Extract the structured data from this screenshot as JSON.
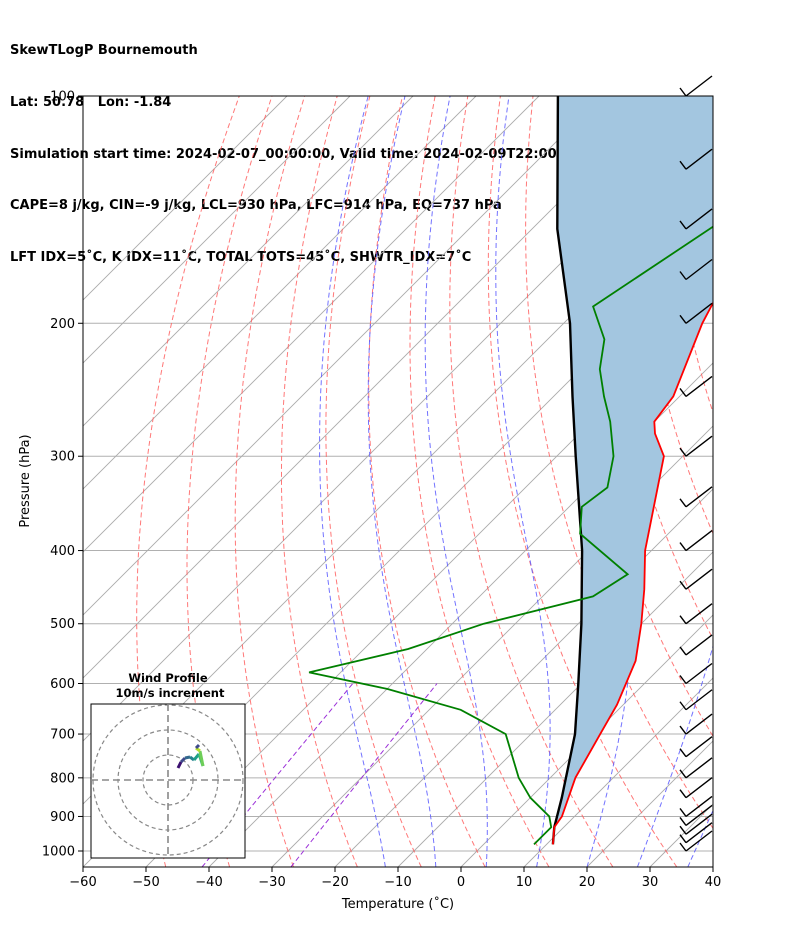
{
  "header": {
    "line1": "SkewTLogP Bournemouth",
    "line2": "Lat: 50.78   Lon: -1.84",
    "line3": "Simulation start time: 2024-02-07_00:00:00, Valid time: 2024-02-09T22:00:00.00",
    "line4": "CAPE=8 j/kg, CIN=-9 j/kg, LCL=930 hPa, LFC=914 hPa, EQ=737 hPa",
    "line5": "LFT IDX=5˚C, K IDX=11˚C, TOTAL TOTS=45˚C, SHWTR_IDX=7˚C"
  },
  "chart_data": {
    "type": "skewt",
    "xlabel": "Temperature (˚C)",
    "ylabel": "Pressure (hPa)",
    "xlim": [
      -60,
      40
    ],
    "ylim": [
      1050,
      100
    ],
    "x_ticks": [
      "−60",
      "−50",
      "−40",
      "−30",
      "−20",
      "−10",
      "0",
      "10",
      "20",
      "30",
      "40"
    ],
    "x_tick_values": [
      -60,
      -50,
      -40,
      -30,
      -20,
      -10,
      0,
      10,
      20,
      30,
      40
    ],
    "y_ticks": [
      "100",
      "200",
      "300",
      "400",
      "500",
      "600",
      "700",
      "800",
      "900",
      "1000"
    ],
    "y_tick_values": [
      100,
      200,
      300,
      400,
      500,
      600,
      700,
      800,
      900,
      1000
    ],
    "grid": true,
    "temperature_profile": [
      {
        "p": 980,
        "t": 11
      },
      {
        "p": 930,
        "t": 8.5
      },
      {
        "p": 900,
        "t": 8
      },
      {
        "p": 800,
        "t": 4
      },
      {
        "p": 700,
        "t": 1
      },
      {
        "p": 640,
        "t": -1
      },
      {
        "p": 560,
        "t": -5
      },
      {
        "p": 500,
        "t": -10
      },
      {
        "p": 450,
        "t": -15
      },
      {
        "p": 400,
        "t": -21
      },
      {
        "p": 300,
        "t": -33
      },
      {
        "p": 280,
        "t": -38
      },
      {
        "p": 270,
        "t": -40
      },
      {
        "p": 250,
        "t": -41
      },
      {
        "p": 200,
        "t": -48
      },
      {
        "p": 170,
        "t": -52
      },
      {
        "p": 140,
        "t": -56
      },
      {
        "p": 120,
        "t": -61
      },
      {
        "p": 100,
        "t": -66
      }
    ],
    "dewpoint_profile": [
      {
        "p": 980,
        "t": 8
      },
      {
        "p": 930,
        "t": 8
      },
      {
        "p": 900,
        "t": 6
      },
      {
        "p": 850,
        "t": 0
      },
      {
        "p": 800,
        "t": -5
      },
      {
        "p": 700,
        "t": -14
      },
      {
        "p": 650,
        "t": -25
      },
      {
        "p": 610,
        "t": -40
      },
      {
        "p": 580,
        "t": -55
      },
      {
        "p": 540,
        "t": -43
      },
      {
        "p": 500,
        "t": -35
      },
      {
        "p": 460,
        "t": -22
      },
      {
        "p": 430,
        "t": -20
      },
      {
        "p": 380,
        "t": -34
      },
      {
        "p": 350,
        "t": -38
      },
      {
        "p": 330,
        "t": -37
      },
      {
        "p": 300,
        "t": -41
      },
      {
        "p": 270,
        "t": -47
      },
      {
        "p": 250,
        "t": -52
      },
      {
        "p": 230,
        "t": -57
      },
      {
        "p": 210,
        "t": -61
      },
      {
        "p": 190,
        "t": -68
      },
      {
        "p": 140,
        "t": -60
      },
      {
        "p": 120,
        "t": -59
      },
      {
        "p": 100,
        "t": -58
      }
    ],
    "parcel_profile": [
      {
        "p": 980,
        "t": 11
      },
      {
        "p": 930,
        "t": 8.5
      },
      {
        "p": 850,
        "t": 5
      },
      {
        "p": 700,
        "t": -3
      },
      {
        "p": 600,
        "t": -10.5
      },
      {
        "p": 500,
        "t": -19.5
      },
      {
        "p": 400,
        "t": -31
      },
      {
        "p": 300,
        "t": -47
      },
      {
        "p": 250,
        "t": -57
      },
      {
        "p": 200,
        "t": -69
      },
      {
        "p": 150,
        "t": -86
      },
      {
        "p": 100,
        "t": -107
      }
    ],
    "wind_barbs_pressure": [
      1000,
      975,
      950,
      925,
      900,
      850,
      800,
      750,
      700,
      650,
      600,
      550,
      500,
      450,
      400,
      350,
      300,
      250,
      200,
      175,
      150,
      125,
      100
    ],
    "inset": {
      "title_line1": "Wind Profile",
      "title_line2": "10m/s increment"
    },
    "colors": {
      "temperature": "#ff0000",
      "dewpoint": "#008000",
      "parcel": "#000000",
      "cape_fill": "#a3c6e0",
      "isotherms": "#aaaaaa",
      "dry_adiabats": "#ff6060",
      "moist_adiabats": "#5a5aff",
      "mixing_ratio": "#9b30d8"
    }
  }
}
